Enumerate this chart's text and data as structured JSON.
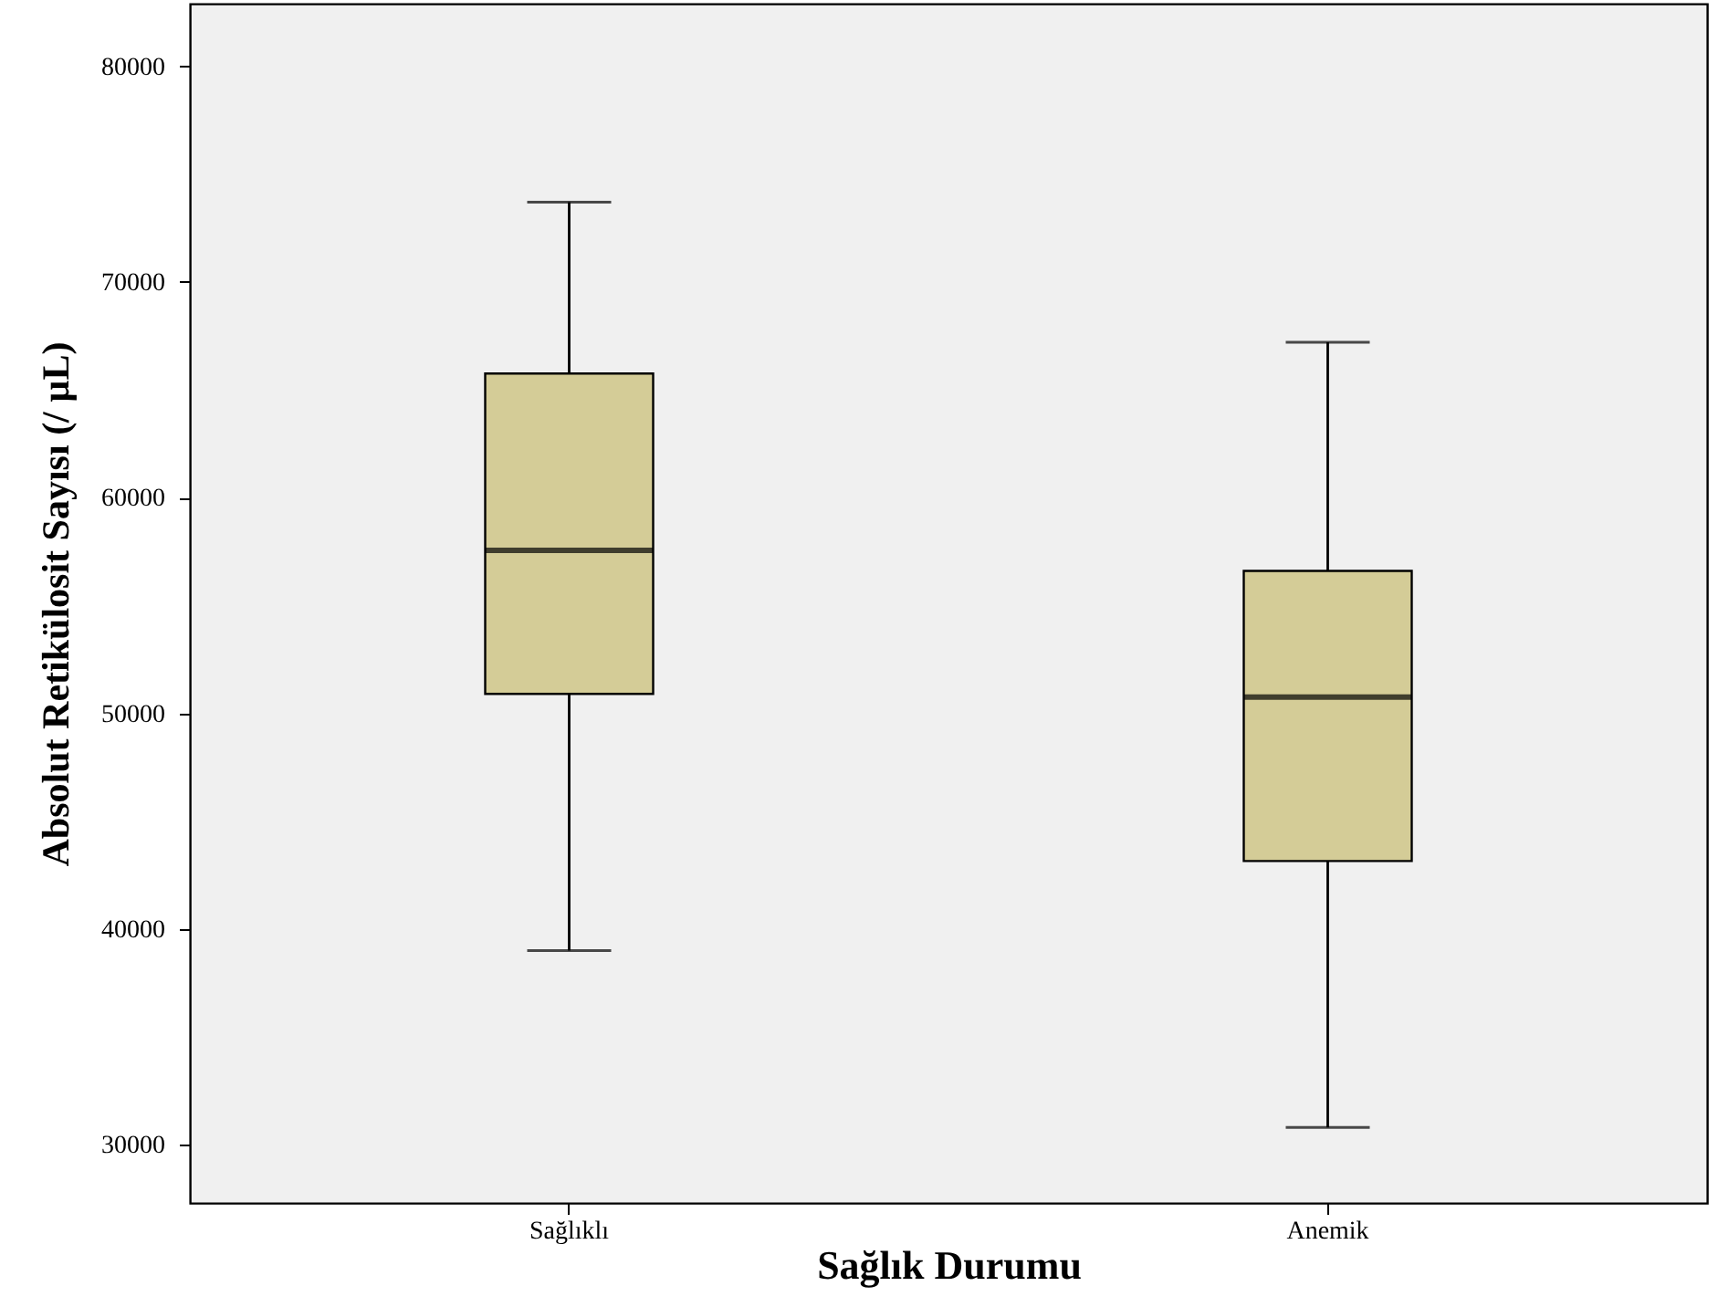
{
  "chart_data": {
    "type": "box",
    "xlabel": "Sağlık Durumu",
    "ylabel": "Absolut Retikülosit Sayısı (/ µL)",
    "categories": [
      "Sağlıklı",
      "Anemik"
    ],
    "boxes": [
      {
        "low": 39000,
        "q1": 50900,
        "median": 57550,
        "q3": 65750,
        "high": 73700
      },
      {
        "low": 30800,
        "q1": 43150,
        "median": 50750,
        "q3": 56600,
        "high": 67200
      }
    ],
    "colors": [
      "#d4cc97",
      "#d4cc97"
    ],
    "ylim": [
      27300,
      82900
    ],
    "yticks": [
      30000,
      40000,
      50000,
      60000,
      70000,
      80000
    ],
    "grid": false
  }
}
